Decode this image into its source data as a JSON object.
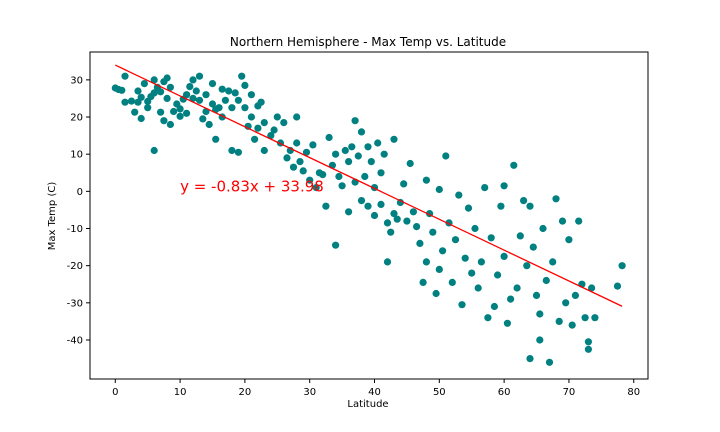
{
  "chart_data": {
    "type": "scatter",
    "title": "Northern Hemisphere - Max Temp vs. Latitude",
    "xlabel": "Latitude",
    "ylabel": "Max Temp (C)",
    "xlim": [
      -3.9,
      82.2
    ],
    "ylim": [
      -50.5,
      37.5
    ],
    "xticks": [
      0,
      10,
      20,
      30,
      40,
      50,
      60,
      70,
      80
    ],
    "yticks": [
      -40,
      -30,
      -20,
      -10,
      0,
      10,
      20,
      30
    ],
    "grid": false,
    "point_color": "#008080",
    "line_color": "#ff0000",
    "regression": {
      "slope": -0.83,
      "intercept": 33.98,
      "x_range": [
        0,
        78.2
      ],
      "equation": "y = -0.83x + 33.98",
      "label_at": [
        10,
        0
      ]
    },
    "points": [
      [
        0,
        27.8
      ],
      [
        0.5,
        27.4
      ],
      [
        1,
        27.2
      ],
      [
        1.5,
        31
      ],
      [
        1.5,
        24
      ],
      [
        2.5,
        24.3
      ],
      [
        3,
        21.3
      ],
      [
        3.5,
        27
      ],
      [
        3.5,
        24
      ],
      [
        4,
        19.6
      ],
      [
        4,
        25.3
      ],
      [
        4.5,
        29
      ],
      [
        5,
        24.2
      ],
      [
        5,
        22.5
      ],
      [
        5.5,
        25.5
      ],
      [
        6,
        26.5
      ],
      [
        6,
        30
      ],
      [
        6,
        11
      ],
      [
        6.5,
        28
      ],
      [
        7,
        21.3
      ],
      [
        7,
        26.8
      ],
      [
        7.5,
        29.5
      ],
      [
        7.5,
        19
      ],
      [
        8,
        25
      ],
      [
        8,
        30.5
      ],
      [
        8.5,
        28
      ],
      [
        8.5,
        18
      ],
      [
        9,
        21.5
      ],
      [
        9.5,
        23.5
      ],
      [
        10,
        22.2
      ],
      [
        10,
        20.2
      ],
      [
        10.5,
        24.8
      ],
      [
        11,
        26
      ],
      [
        11,
        21
      ],
      [
        11.5,
        28.2
      ],
      [
        12,
        30
      ],
      [
        12,
        25
      ],
      [
        12.5,
        27
      ],
      [
        13,
        31
      ],
      [
        13,
        24.5
      ],
      [
        13.5,
        19.5
      ],
      [
        14,
        26
      ],
      [
        14,
        21.5
      ],
      [
        14.5,
        18
      ],
      [
        15,
        23.5
      ],
      [
        15,
        29
      ],
      [
        15.5,
        22
      ],
      [
        15.5,
        14
      ],
      [
        16,
        22.5
      ],
      [
        16.5,
        27.5
      ],
      [
        16.5,
        20
      ],
      [
        17,
        24.5
      ],
      [
        17.5,
        27
      ],
      [
        18,
        22.5
      ],
      [
        18,
        11
      ],
      [
        18.5,
        26.5
      ],
      [
        19,
        24.5
      ],
      [
        19,
        10.5
      ],
      [
        19.5,
        31
      ],
      [
        20,
        28.5
      ],
      [
        20,
        22.5
      ],
      [
        20.5,
        17.5
      ],
      [
        21,
        26
      ],
      [
        21,
        20
      ],
      [
        21.5,
        14
      ],
      [
        22,
        23
      ],
      [
        22,
        17
      ],
      [
        22.5,
        24
      ],
      [
        23,
        18.5
      ],
      [
        23,
        11
      ],
      [
        24,
        15
      ],
      [
        24.5,
        16.5
      ],
      [
        25,
        20
      ],
      [
        25.5,
        13
      ],
      [
        26,
        18.5
      ],
      [
        26.5,
        9
      ],
      [
        27,
        11
      ],
      [
        27.5,
        6.5
      ],
      [
        28,
        13
      ],
      [
        28,
        20
      ],
      [
        28.5,
        8
      ],
      [
        29,
        5.5
      ],
      [
        29.5,
        10.5
      ],
      [
        30,
        3
      ],
      [
        30.5,
        12.5
      ],
      [
        31,
        1
      ],
      [
        31.5,
        5
      ],
      [
        32,
        4.5
      ],
      [
        32.5,
        -4
      ],
      [
        33,
        14.5
      ],
      [
        33.5,
        7
      ],
      [
        34,
        -14.5
      ],
      [
        34,
        10
      ],
      [
        34.5,
        4
      ],
      [
        35,
        1.5
      ],
      [
        35.5,
        11
      ],
      [
        36,
        8
      ],
      [
        36,
        -5.5
      ],
      [
        36.5,
        12
      ],
      [
        37,
        2.5
      ],
      [
        37,
        19
      ],
      [
        37.5,
        9.5
      ],
      [
        38,
        16
      ],
      [
        38,
        -2.5
      ],
      [
        38.5,
        4
      ],
      [
        39,
        12
      ],
      [
        39,
        -4
      ],
      [
        39.5,
        8
      ],
      [
        40,
        1
      ],
      [
        40,
        -6.5
      ],
      [
        40.5,
        13
      ],
      [
        41,
        5
      ],
      [
        41,
        -3.5
      ],
      [
        41.5,
        10
      ],
      [
        42,
        -8.5
      ],
      [
        42,
        -19
      ],
      [
        42.5,
        -11
      ],
      [
        43,
        14
      ],
      [
        43,
        -6
      ],
      [
        43.5,
        -7.5
      ],
      [
        44,
        -3
      ],
      [
        44.5,
        2
      ],
      [
        45,
        -8
      ],
      [
        45.5,
        7.5
      ],
      [
        46,
        -5.5
      ],
      [
        46.5,
        -9.5
      ],
      [
        47,
        -14
      ],
      [
        47.5,
        -24.5
      ],
      [
        48,
        3
      ],
      [
        48,
        -19
      ],
      [
        48.5,
        -6
      ],
      [
        49,
        -11
      ],
      [
        49.5,
        -27.5
      ],
      [
        50,
        0.5
      ],
      [
        50,
        -21
      ],
      [
        50.5,
        -16
      ],
      [
        51,
        9.5
      ],
      [
        51.5,
        -8.5
      ],
      [
        52,
        -24.5
      ],
      [
        52.5,
        -13
      ],
      [
        53,
        -1
      ],
      [
        53.5,
        -30.5
      ],
      [
        54,
        -18
      ],
      [
        54.5,
        -4.5
      ],
      [
        55,
        -22
      ],
      [
        55.5,
        -10
      ],
      [
        56,
        -26
      ],
      [
        56.5,
        -19
      ],
      [
        57,
        1
      ],
      [
        57.5,
        -34
      ],
      [
        58,
        -12.5
      ],
      [
        58.5,
        -31
      ],
      [
        59,
        -22.5
      ],
      [
        59.5,
        -4
      ],
      [
        60,
        -17.5
      ],
      [
        60,
        1.5
      ],
      [
        60.5,
        -35.5
      ],
      [
        61,
        -29
      ],
      [
        61.5,
        7
      ],
      [
        62,
        -26
      ],
      [
        62.5,
        -12
      ],
      [
        63,
        -2.5
      ],
      [
        63.5,
        -20
      ],
      [
        64,
        -45
      ],
      [
        64,
        -4
      ],
      [
        64.5,
        -15
      ],
      [
        65,
        -28
      ],
      [
        65.5,
        -33
      ],
      [
        65.5,
        -40
      ],
      [
        66,
        -10
      ],
      [
        66.5,
        -24
      ],
      [
        67,
        -46
      ],
      [
        67.5,
        -19
      ],
      [
        68,
        -2
      ],
      [
        68.5,
        -35
      ],
      [
        69,
        -8
      ],
      [
        69.5,
        -30
      ],
      [
        70,
        -13
      ],
      [
        70.5,
        -36
      ],
      [
        71,
        -28
      ],
      [
        71.5,
        -8
      ],
      [
        72,
        -25
      ],
      [
        72.5,
        -34
      ],
      [
        73,
        -40.5
      ],
      [
        73,
        -42.5
      ],
      [
        73.5,
        -26
      ],
      [
        74,
        -34
      ],
      [
        77.5,
        -25.5
      ],
      [
        78.2,
        -20
      ]
    ]
  }
}
